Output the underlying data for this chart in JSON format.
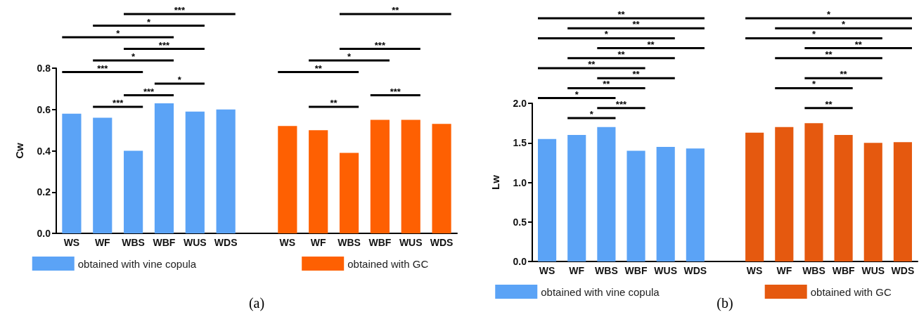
{
  "chart_data": [
    {
      "type": "bar",
      "ylabel": "Cw",
      "categories": [
        "WS",
        "WF",
        "WBS",
        "WBF",
        "WUS",
        "WDS",
        null,
        "WS",
        "WF",
        "WBS",
        "WBF",
        "WUS",
        "WDS"
      ],
      "series": [
        {
          "name": "obtained with vine copula",
          "color": "#5ba3f6",
          "values": [
            0.58,
            0.56,
            0.4,
            0.63,
            0.59,
            0.6,
            null,
            null,
            null,
            null,
            null,
            null,
            null
          ]
        },
        {
          "name": "obtained with GC",
          "color": "#fe6002",
          "values": [
            null,
            null,
            null,
            null,
            null,
            null,
            null,
            0.52,
            0.5,
            0.39,
            0.55,
            0.55,
            0.53
          ]
        }
      ],
      "ylim": [
        0,
        0.8
      ],
      "yticks": [
        {
          "value": 0,
          "label": "0.0"
        },
        {
          "value": 0.2,
          "label": "0.2"
        },
        {
          "value": 0.4,
          "label": "0.4"
        },
        {
          "value": 0.6,
          "label": "0.6"
        },
        {
          "value": 0.8,
          "label": "0.8"
        }
      ],
      "grid": false,
      "legend": "bottom",
      "annotations": [
        "(a)",
        "***",
        "*",
        "*",
        "***",
        "*",
        "***",
        "*",
        "***",
        "***",
        "**",
        "***",
        "*",
        "**",
        "***",
        "**"
      ]
    },
    {
      "type": "bar",
      "ylabel": "Lw",
      "categories": [
        "WS",
        "WF",
        "WBS",
        "WBF",
        "WUS",
        "WDS",
        null,
        "WS",
        "WF",
        "WBS",
        "WBF",
        "WUS",
        "WDS"
      ],
      "series": [
        {
          "name": "obtained with vine copula",
          "color": "#5ba3f6",
          "values": [
            1.55,
            1.6,
            1.7,
            1.4,
            1.45,
            1.43,
            null,
            null,
            null,
            null,
            null,
            null,
            null
          ]
        },
        {
          "name": "obtained with GC",
          "color": "#e5590f",
          "values": [
            null,
            null,
            null,
            null,
            null,
            null,
            null,
            1.63,
            1.7,
            1.75,
            1.6,
            1.5,
            1.51
          ]
        }
      ],
      "ylim": [
        0,
        2
      ],
      "yticks": [
        {
          "value": 0,
          "label": "0.0"
        },
        {
          "value": 0.5,
          "label": "0.5"
        },
        {
          "value": 1,
          "label": "1.0"
        },
        {
          "value": 1.5,
          "label": "1.5"
        },
        {
          "value": 2,
          "label": "2.0"
        }
      ],
      "grid": false,
      "legend": "bottom",
      "annotations": [
        "(b)",
        "**",
        "**",
        "*",
        "**",
        "**",
        "**",
        "**",
        "**",
        "*",
        "***",
        "*",
        "*",
        "*",
        "*",
        "**",
        "**",
        "**",
        "*",
        "**"
      ]
    }
  ]
}
